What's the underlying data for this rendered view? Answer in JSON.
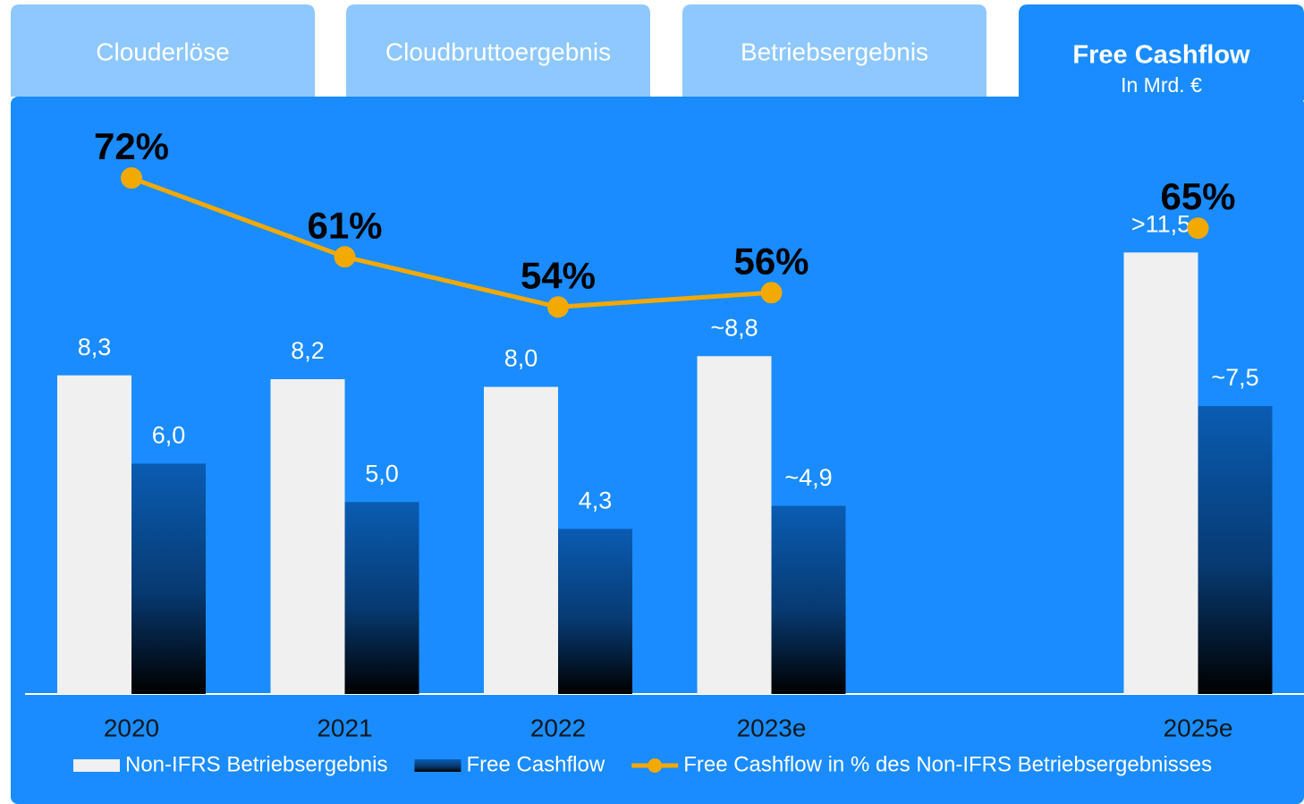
{
  "tabs": [
    "Clouderlöse",
    "Cloudbruttoergebnis",
    "Betriebsergebnis",
    "Free Cashflow"
  ],
  "active_tab": 3,
  "chart_data": {
    "type": "bar",
    "subtitle": "In Mrd. €",
    "categories": [
      "2020",
      "2021",
      "2022",
      "2023e",
      null,
      "2025e"
    ],
    "series": [
      {
        "name": "Non-IFRS Betriebsergebnis",
        "color": "#f0f0f0",
        "values": [
          8.3,
          8.2,
          8.0,
          8.8,
          null,
          11.5
        ],
        "value_labels": [
          "8,3",
          "8,2",
          "8,0",
          "~8,8",
          null,
          ">11,5"
        ]
      },
      {
        "name": "Free Cashflow",
        "color": "#0a5cb3",
        "values": [
          6.0,
          5.0,
          4.3,
          4.9,
          null,
          7.5
        ],
        "value_labels": [
          "6,0",
          "5,0",
          "4,3",
          "~4,9",
          null,
          "~7,5"
        ]
      },
      {
        "name": "Free Cashflow in % des Non-IFRS Betriebsergebnisses",
        "type": "line",
        "axis": "y2",
        "color": "#f2a900",
        "values": [
          72,
          61,
          54,
          56,
          null,
          65
        ],
        "value_labels": [
          "72%",
          "61%",
          "54%",
          "56%",
          null,
          "65%"
        ]
      }
    ],
    "ylim": [
      0,
      14
    ],
    "y2lim": [
      0,
      75
    ],
    "grid": false
  }
}
